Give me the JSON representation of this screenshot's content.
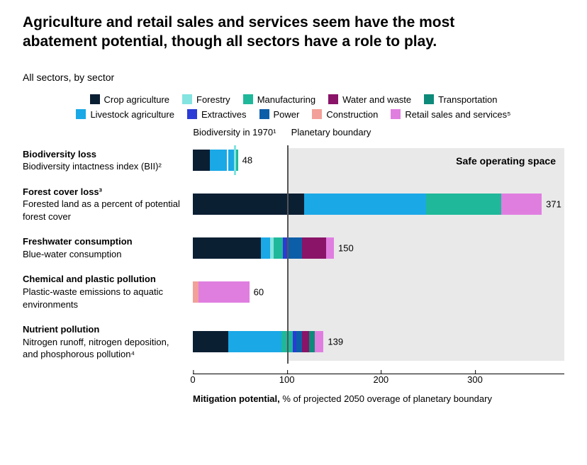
{
  "title": "Agriculture and retail sales and services seem have the most abatement potential, though all sectors have a role to play.",
  "subtitle": "All sectors, by sector",
  "legend": [
    {
      "label": "Crop agriculture",
      "color": "#0b1f33"
    },
    {
      "label": "Forestry",
      "color": "#83e4e0"
    },
    {
      "label": "Manufacturing",
      "color": "#1fb89a"
    },
    {
      "label": "Water and waste",
      "color": "#8a1468"
    },
    {
      "label": "Transportation",
      "color": "#0e8a7a"
    },
    {
      "label": "Livestock agriculture",
      "color": "#1aa8e6"
    },
    {
      "label": "Extractives",
      "color": "#2a3bd6"
    },
    {
      "label": "Power",
      "color": "#0d5ea8"
    },
    {
      "label": "Construction",
      "color": "#f2a099"
    },
    {
      "label": "Retail sales and services⁵",
      "color": "#e07ee0"
    }
  ],
  "chart": {
    "type": "stacked-horizontal-bar",
    "xmax": 395,
    "boundary_x": 100,
    "safe_start_x": 100,
    "header_left": "Biodiversity in 1970¹",
    "header_right": "Planetary boundary",
    "safe_label": "Safe operating space",
    "xticks": [
      0,
      100,
      200,
      300
    ],
    "axis_title_bold": "Mitigation potential,",
    "axis_title_rest": " % of projected 2050 overage of planetary boundary",
    "background": "#ffffff",
    "safe_bg": "#e9e9e9",
    "rows": [
      {
        "title": "Biodiversity loss",
        "sub": "Biodiversity intactness index (BII)²",
        "total": 48,
        "marker_at": 44,
        "segments": [
          {
            "color": "#0b1f33",
            "v": 18
          },
          {
            "color": "#1aa8e6",
            "v": 18
          },
          {
            "color": "#ffffff",
            "v": 2
          },
          {
            "color": "#1aa8e6",
            "v": 6
          },
          {
            "color": "#1fb89a",
            "v": 4
          }
        ]
      },
      {
        "title": "Forest cover loss³",
        "sub": "Forested land as a percent of potential forest cover",
        "total": 371,
        "segments": [
          {
            "color": "#0b1f33",
            "v": 118
          },
          {
            "color": "#1aa8e6",
            "v": 130
          },
          {
            "color": "#1fb89a",
            "v": 80
          },
          {
            "color": "#e07ee0",
            "v": 43
          }
        ]
      },
      {
        "title": "Freshwater consumption",
        "sub": "Blue-water consumption",
        "total": 150,
        "segments": [
          {
            "color": "#0b1f33",
            "v": 72
          },
          {
            "color": "#1aa8e6",
            "v": 10
          },
          {
            "color": "#83e4e0",
            "v": 4
          },
          {
            "color": "#1fb89a",
            "v": 10
          },
          {
            "color": "#2a3bd6",
            "v": 6
          },
          {
            "color": "#0d5ea8",
            "v": 14
          },
          {
            "color": "#8a1468",
            "v": 26
          },
          {
            "color": "#e07ee0",
            "v": 8
          }
        ]
      },
      {
        "title": "Chemical and plastic pollution",
        "sub": "Plastic-waste emissions to aquatic environments",
        "total": 60,
        "segments": [
          {
            "color": "#f2a099",
            "v": 6
          },
          {
            "color": "#e07ee0",
            "v": 54
          }
        ]
      },
      {
        "title": "Nutrient pollution",
        "sub": "Nitrogen runoff, nitrogen deposition, and phosphorous pollution⁴",
        "total": 139,
        "segments": [
          {
            "color": "#0b1f33",
            "v": 38
          },
          {
            "color": "#1aa8e6",
            "v": 56
          },
          {
            "color": "#1fb89a",
            "v": 12
          },
          {
            "color": "#2a3bd6",
            "v": 4
          },
          {
            "color": "#0d5ea8",
            "v": 6
          },
          {
            "color": "#8a1468",
            "v": 8
          },
          {
            "color": "#0e8a7a",
            "v": 6
          },
          {
            "color": "#e07ee0",
            "v": 9
          }
        ]
      }
    ]
  }
}
